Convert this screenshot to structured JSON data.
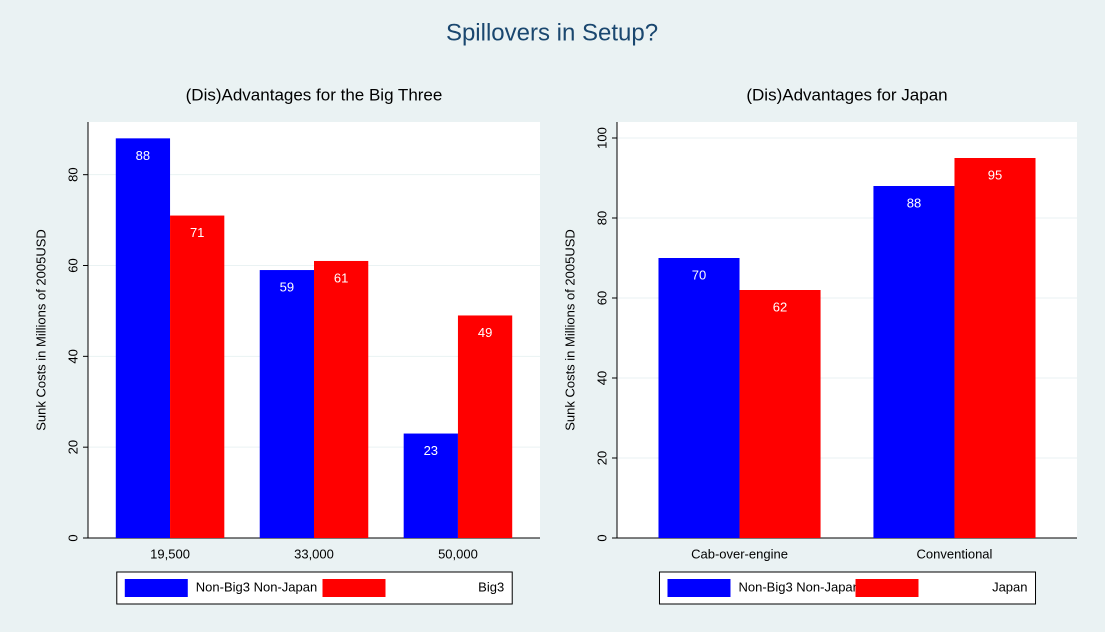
{
  "title": "Spillovers in Setup?",
  "chart_data": [
    {
      "type": "bar",
      "title": "(Dis)Advantages for the Big Three",
      "ylabel": "Sunk Costs in Millions of 2005USD",
      "categories": [
        "19,500",
        "33,000",
        "50,000"
      ],
      "series": [
        {
          "name": "Non-Big3 Non-Japan",
          "color": "#0000ff",
          "values": [
            88,
            59,
            23
          ]
        },
        {
          "name": "Big3",
          "color": "#ff0000",
          "values": [
            71,
            61,
            49
          ]
        }
      ],
      "ylim": [
        0,
        91.6
      ],
      "yticks": [
        0,
        20,
        40,
        60,
        80
      ],
      "grid": true,
      "legend": "bottom"
    },
    {
      "type": "bar",
      "title": "(Dis)Advantages for Japan",
      "ylabel": "Sunk Costs in Millions of 2005USD",
      "categories": [
        "Cab-over-engine",
        "Conventional"
      ],
      "series": [
        {
          "name": "Non-Big3 Non-Japan",
          "color": "#0000ff",
          "values": [
            70,
            88
          ]
        },
        {
          "name": "Japan",
          "color": "#ff0000",
          "values": [
            62,
            95
          ]
        }
      ],
      "ylim": [
        0,
        104
      ],
      "yticks": [
        0,
        20,
        40,
        60,
        80,
        100
      ],
      "grid": true,
      "legend": "bottom"
    }
  ]
}
